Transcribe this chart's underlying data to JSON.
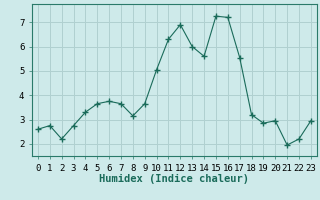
{
  "x": [
    0,
    1,
    2,
    3,
    4,
    5,
    6,
    7,
    8,
    9,
    10,
    11,
    12,
    13,
    14,
    15,
    16,
    17,
    18,
    19,
    20,
    21,
    22,
    23
  ],
  "y": [
    2.6,
    2.75,
    2.2,
    2.75,
    3.3,
    3.65,
    3.75,
    3.65,
    3.15,
    3.65,
    5.05,
    6.3,
    6.9,
    6.0,
    5.6,
    7.25,
    7.2,
    5.55,
    3.2,
    2.85,
    2.95,
    1.95,
    2.2,
    2.95
  ],
  "line_color": "#1a6b5a",
  "marker": "+",
  "marker_size": 4,
  "bg_color": "#ceeaea",
  "grid_color": "#b0d0d0",
  "xlabel": "Humidex (Indice chaleur)",
  "ylim": [
    1.5,
    7.75
  ],
  "xlim": [
    -0.5,
    23.5
  ],
  "yticks": [
    2,
    3,
    4,
    5,
    6,
    7
  ],
  "xticks": [
    0,
    1,
    2,
    3,
    4,
    5,
    6,
    7,
    8,
    9,
    10,
    11,
    12,
    13,
    14,
    15,
    16,
    17,
    18,
    19,
    20,
    21,
    22,
    23
  ],
  "xlabel_fontsize": 7.5,
  "tick_fontsize": 6.5,
  "spine_color": "#2a7a6a"
}
